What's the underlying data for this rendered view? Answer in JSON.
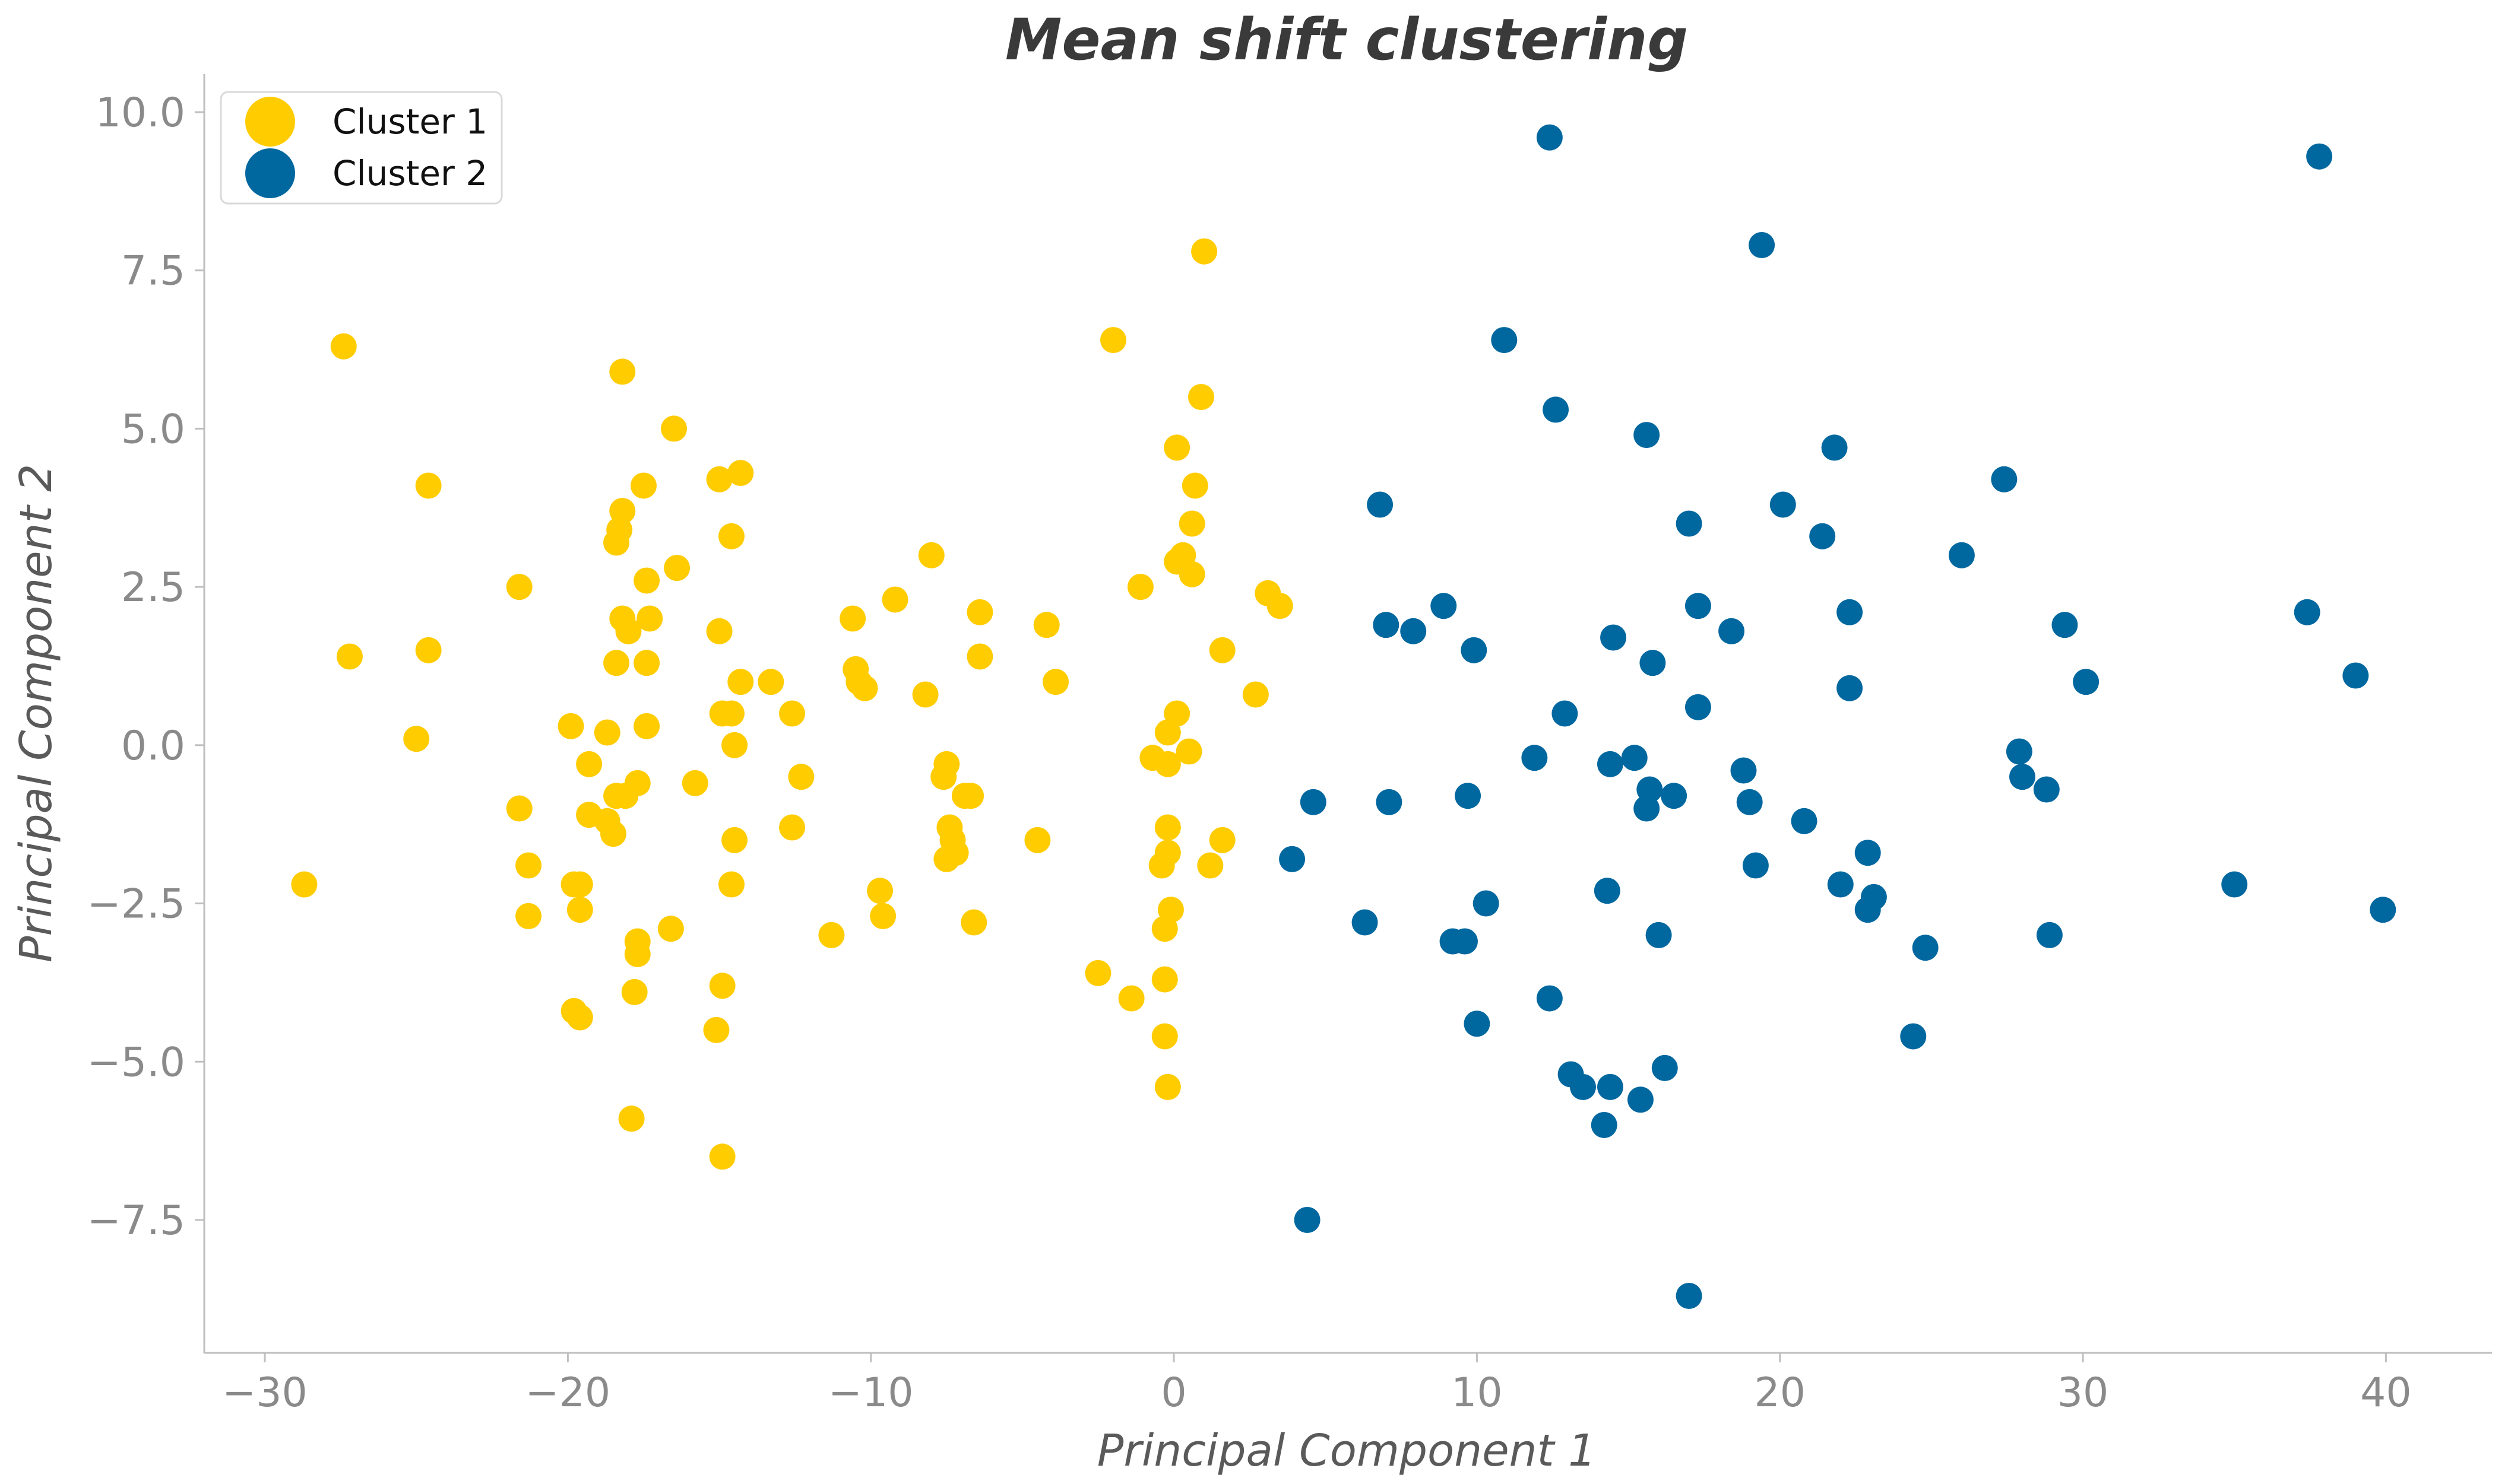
{
  "chart_data": {
    "type": "scatter",
    "title": "Mean shift clustering",
    "xlabel": "Principal Component 1",
    "ylabel": "Principal Component 2",
    "xlim": [
      -32,
      43.5
    ],
    "ylim": [
      -9.6,
      10.6
    ],
    "xticks": [
      -30,
      -20,
      -10,
      0,
      10,
      20,
      30,
      40
    ],
    "xtick_labels": [
      "−30",
      "−20",
      "−10",
      "0",
      "10",
      "20",
      "30",
      "40"
    ],
    "yticks": [
      -7.5,
      -5.0,
      -2.5,
      0.0,
      2.5,
      5.0,
      7.5,
      10.0
    ],
    "ytick_labels": [
      "−7.5",
      "−5.0",
      "−2.5",
      "0.0",
      "2.5",
      "5.0",
      "7.5",
      "10.0"
    ],
    "grid": false,
    "legend": {
      "position": "top-left",
      "entries": [
        "Cluster 1",
        "Cluster 2"
      ]
    },
    "series": [
      {
        "name": "Cluster 1",
        "color": "#FFCC00",
        "points": [
          [
            -27.4,
            6.3
          ],
          [
            -27.2,
            1.4
          ],
          [
            -28.7,
            -2.2
          ],
          [
            -24.6,
            4.1
          ],
          [
            -24.6,
            1.5
          ],
          [
            -25.0,
            0.1
          ],
          [
            -21.6,
            2.5
          ],
          [
            -21.6,
            -1.0
          ],
          [
            -21.3,
            -1.9
          ],
          [
            -21.3,
            -2.7
          ],
          [
            -19.9,
            0.3
          ],
          [
            -19.8,
            -2.2
          ],
          [
            -19.6,
            -2.2
          ],
          [
            -19.6,
            -2.6
          ],
          [
            -19.8,
            -4.2
          ],
          [
            -19.6,
            -4.3
          ],
          [
            -19.3,
            -0.3
          ],
          [
            -19.3,
            -1.1
          ],
          [
            -18.7,
            0.2
          ],
          [
            -18.7,
            -1.2
          ],
          [
            -18.5,
            -1.4
          ],
          [
            -18.4,
            -0.8
          ],
          [
            -18.1,
            -0.8
          ],
          [
            -18.4,
            1.3
          ],
          [
            -18.2,
            2.0
          ],
          [
            -18.0,
            1.8
          ],
          [
            -18.4,
            3.2
          ],
          [
            -18.3,
            3.4
          ],
          [
            -18.2,
            3.7
          ],
          [
            -18.2,
            5.9
          ],
          [
            -17.7,
            -0.6
          ],
          [
            -17.7,
            -3.1
          ],
          [
            -17.7,
            -3.3
          ],
          [
            -17.8,
            -3.9
          ],
          [
            -17.9,
            -5.9
          ],
          [
            -17.5,
            4.1
          ],
          [
            -17.4,
            2.6
          ],
          [
            -17.3,
            2.0
          ],
          [
            -17.4,
            1.3
          ],
          [
            -17.4,
            0.3
          ],
          [
            -16.6,
            -2.9
          ],
          [
            -16.5,
            5.0
          ],
          [
            -16.4,
            2.8
          ],
          [
            -15.8,
            -0.6
          ],
          [
            -15.0,
            4.2
          ],
          [
            -14.3,
            4.3
          ],
          [
            -15.0,
            1.8
          ],
          [
            -14.9,
            0.5
          ],
          [
            -14.6,
            0.5
          ],
          [
            -14.6,
            3.3
          ],
          [
            -14.3,
            1.0
          ],
          [
            -14.5,
            0.0
          ],
          [
            -14.5,
            -1.5
          ],
          [
            -14.6,
            -2.2
          ],
          [
            -14.9,
            -3.8
          ],
          [
            -15.1,
            -4.5
          ],
          [
            -14.9,
            -6.5
          ],
          [
            -13.3,
            1.0
          ],
          [
            -12.6,
            0.5
          ],
          [
            -12.3,
            -0.5
          ],
          [
            -12.6,
            -1.3
          ],
          [
            -11.3,
            -3.0
          ],
          [
            -10.6,
            2.0
          ],
          [
            -10.5,
            1.2
          ],
          [
            -10.4,
            1.0
          ],
          [
            -10.2,
            0.9
          ],
          [
            -9.7,
            -2.3
          ],
          [
            -9.6,
            -2.7
          ],
          [
            -9.2,
            2.3
          ],
          [
            -8.2,
            0.8
          ],
          [
            -8.0,
            3.0
          ],
          [
            -7.5,
            -0.3
          ],
          [
            -7.6,
            -0.5
          ],
          [
            -7.4,
            -1.3
          ],
          [
            -7.3,
            -1.5
          ],
          [
            -7.2,
            -1.7
          ],
          [
            -7.5,
            -1.8
          ],
          [
            -6.9,
            -0.8
          ],
          [
            -6.7,
            -0.8
          ],
          [
            -6.6,
            -2.8
          ],
          [
            -6.4,
            2.1
          ],
          [
            -6.4,
            1.4
          ],
          [
            -4.5,
            -1.5
          ],
          [
            -4.2,
            1.9
          ],
          [
            -3.9,
            1.0
          ],
          [
            -2.5,
            -3.6
          ],
          [
            -2.0,
            6.4
          ],
          [
            -1.4,
            -4.0
          ],
          [
            -1.1,
            2.5
          ],
          [
            -0.7,
            -0.2
          ],
          [
            -0.4,
            -1.9
          ],
          [
            -0.3,
            -2.9
          ],
          [
            -0.3,
            -3.7
          ],
          [
            -0.3,
            -4.6
          ],
          [
            -0.2,
            -5.4
          ],
          [
            -0.2,
            -0.3
          ],
          [
            -0.2,
            0.2
          ],
          [
            -0.2,
            -1.3
          ],
          [
            -0.2,
            -1.7
          ],
          [
            -0.1,
            -2.6
          ],
          [
            0.1,
            0.5
          ],
          [
            0.1,
            2.9
          ],
          [
            0.1,
            4.7
          ],
          [
            0.3,
            3.0
          ],
          [
            0.5,
            -0.1
          ],
          [
            0.6,
            2.7
          ],
          [
            0.6,
            3.5
          ],
          [
            0.7,
            4.1
          ],
          [
            0.9,
            5.5
          ],
          [
            1.0,
            7.8
          ],
          [
            1.2,
            -1.9
          ],
          [
            1.6,
            -1.5
          ],
          [
            1.6,
            1.5
          ],
          [
            2.7,
            0.8
          ],
          [
            3.1,
            2.4
          ],
          [
            3.5,
            2.2
          ]
        ]
      },
      {
        "name": "Cluster 2",
        "color": "#00679F",
        "points": [
          [
            3.9,
            -1.8
          ],
          [
            4.4,
            -7.5
          ],
          [
            4.6,
            -0.9
          ],
          [
            6.3,
            -2.8
          ],
          [
            6.8,
            3.8
          ],
          [
            7.0,
            1.9
          ],
          [
            7.1,
            -0.9
          ],
          [
            7.9,
            1.8
          ],
          [
            8.9,
            2.2
          ],
          [
            9.2,
            -3.1
          ],
          [
            9.6,
            -3.1
          ],
          [
            9.7,
            -0.8
          ],
          [
            9.9,
            1.5
          ],
          [
            10.0,
            -4.4
          ],
          [
            10.3,
            -2.5
          ],
          [
            10.9,
            6.4
          ],
          [
            11.9,
            -0.2
          ],
          [
            12.4,
            9.6
          ],
          [
            12.4,
            -4.0
          ],
          [
            12.6,
            5.3
          ],
          [
            12.9,
            0.5
          ],
          [
            13.1,
            -5.2
          ],
          [
            13.5,
            -5.4
          ],
          [
            14.2,
            -6.0
          ],
          [
            14.3,
            -2.3
          ],
          [
            14.4,
            -5.4
          ],
          [
            14.4,
            -0.3
          ],
          [
            14.5,
            1.7
          ],
          [
            15.2,
            -0.2
          ],
          [
            15.4,
            -5.6
          ],
          [
            15.6,
            4.9
          ],
          [
            15.6,
            -1.0
          ],
          [
            15.7,
            -0.7
          ],
          [
            15.8,
            1.3
          ],
          [
            16.0,
            -3.0
          ],
          [
            16.2,
            -5.1
          ],
          [
            16.5,
            -0.8
          ],
          [
            17.0,
            3.5
          ],
          [
            17.0,
            -8.7
          ],
          [
            17.3,
            2.2
          ],
          [
            17.3,
            0.6
          ],
          [
            18.4,
            1.8
          ],
          [
            18.8,
            -0.4
          ],
          [
            19.0,
            -0.9
          ],
          [
            19.2,
            -1.9
          ],
          [
            19.4,
            7.9
          ],
          [
            20.1,
            3.8
          ],
          [
            20.8,
            -1.2
          ],
          [
            21.4,
            3.3
          ],
          [
            21.8,
            4.7
          ],
          [
            22.0,
            -2.2
          ],
          [
            22.3,
            2.1
          ],
          [
            22.3,
            0.9
          ],
          [
            22.9,
            -1.7
          ],
          [
            22.9,
            -2.6
          ],
          [
            23.1,
            -2.4
          ],
          [
            24.4,
            -4.6
          ],
          [
            24.8,
            -3.2
          ],
          [
            26.0,
            3.0
          ],
          [
            27.4,
            4.2
          ],
          [
            27.9,
            -0.1
          ],
          [
            28.0,
            -0.5
          ],
          [
            28.8,
            -0.7
          ],
          [
            28.9,
            -3.0
          ],
          [
            29.4,
            1.9
          ],
          [
            30.1,
            1.0
          ],
          [
            35.0,
            -2.2
          ],
          [
            37.4,
            2.1
          ],
          [
            37.8,
            9.3
          ],
          [
            39.0,
            1.1
          ],
          [
            39.9,
            -2.6
          ]
        ]
      }
    ]
  }
}
